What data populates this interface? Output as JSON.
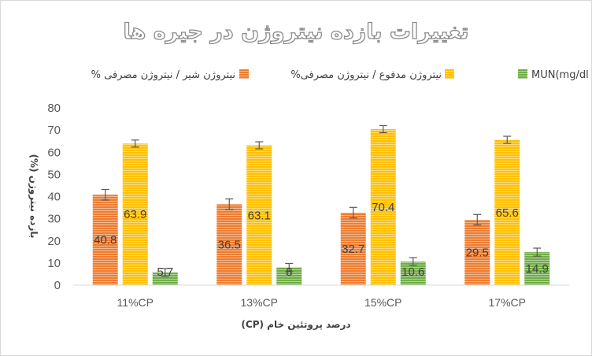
{
  "chart_data": {
    "type": "bar",
    "title": "تغییرات بازده نیتروژن در جیره ها",
    "xlabel": "درصد پروتئین خام (CP)",
    "ylabel": "بازده نیتروژن (%)",
    "categories": [
      "11%CP",
      "13%CP",
      "15%CP",
      "17%CP"
    ],
    "ylim": [
      0,
      80
    ],
    "yticks": [
      0,
      10,
      20,
      30,
      40,
      50,
      60,
      70,
      80
    ],
    "grid": false,
    "legend_position": "top",
    "series": [
      {
        "name": "نیتروژن شیر / نیتروژن مصرفی %",
        "color": "#ed7d31",
        "values": [
          40.8,
          36.5,
          32.7,
          29.5
        ],
        "labels": [
          "40.8",
          "36.5",
          "32.7",
          "29.5"
        ],
        "error": [
          2.4,
          2.4,
          2.4,
          2.4
        ]
      },
      {
        "name": "نیتروژن مدفوع / نیتروژن مصرفی%",
        "color": "#ffc000",
        "values": [
          63.9,
          63.1,
          70.4,
          65.6
        ],
        "labels": [
          "63.9",
          "63.1",
          "70.4",
          "65.6"
        ],
        "error": [
          1.6,
          1.6,
          1.6,
          1.6
        ]
      },
      {
        "name": "MUN(mg/dl",
        "color": "#70ad47",
        "values": [
          5.7,
          8,
          10.6,
          14.9
        ],
        "labels": [
          "5.7",
          "8",
          "10.6",
          "14.9"
        ],
        "error": [
          1.8,
          1.8,
          1.8,
          1.8
        ]
      }
    ]
  }
}
